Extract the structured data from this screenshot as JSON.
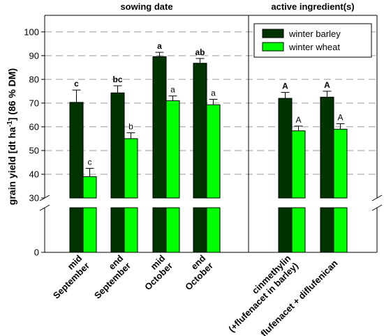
{
  "chart_data": {
    "type": "bar",
    "ylabel": {
      "main": "grain yield [dt ha",
      "sup": "-1",
      "tail": "] (86 % DM)"
    },
    "group_labels": [
      "sowing date",
      "active ingredient(s)"
    ],
    "categories": [
      {
        "lines": [
          "mid",
          "September"
        ],
        "group": 0
      },
      {
        "lines": [
          "end",
          "September"
        ],
        "group": 0
      },
      {
        "lines": [
          "mid",
          "October"
        ],
        "group": 0
      },
      {
        "lines": [
          "end",
          "October"
        ],
        "group": 0
      },
      {
        "lines": [
          "cinmethylin",
          "(+flufenacet in barley)"
        ],
        "group": 1
      },
      {
        "lines": [
          "flufenacet + diflufenican"
        ],
        "group": 1
      }
    ],
    "series": [
      {
        "name": "winter barley",
        "color": "#003300",
        "values": [
          70.3,
          74.3,
          89.6,
          86.8,
          72.0,
          72.5
        ],
        "errors": [
          5.2,
          3.0,
          1.8,
          2.0,
          2.5,
          2.5
        ],
        "letters": [
          "c",
          "bc",
          "a",
          "ab",
          "A",
          "A"
        ],
        "letter_bold": true
      },
      {
        "name": "winter wheat",
        "color": "#00ff00",
        "values": [
          39.0,
          55.0,
          71.0,
          69.3,
          58.3,
          59.0
        ],
        "errors": [
          3.5,
          2.5,
          2.0,
          2.3,
          2.0,
          2.3
        ],
        "letters": [
          "c",
          "b",
          "a",
          "a",
          "A",
          "A"
        ],
        "letter_bold": false
      }
    ],
    "y_ticks": [
      0,
      30,
      40,
      50,
      60,
      70,
      80,
      90,
      100
    ],
    "ylim": [
      0,
      105
    ],
    "axis_break": [
      0,
      30
    ],
    "grid": true,
    "legend": "top-right"
  }
}
